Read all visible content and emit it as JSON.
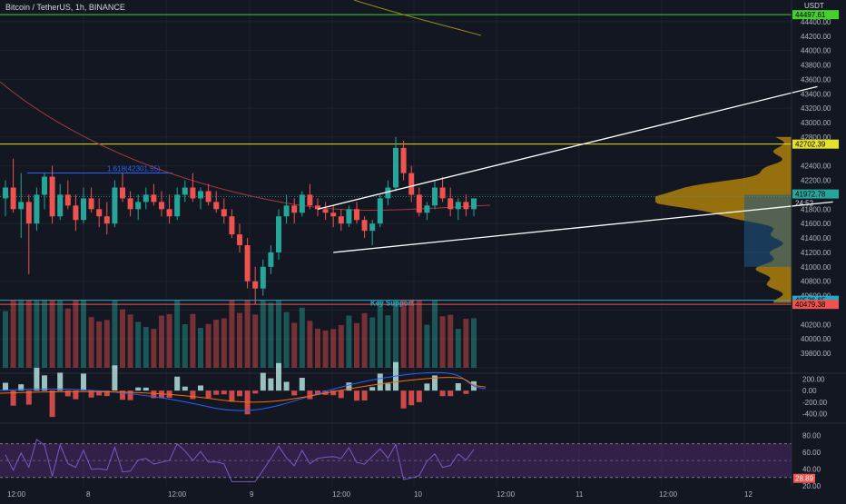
{
  "header": {
    "symbol": "Bitcoin / TetherUS, 1h, BINANCE",
    "currency": "USDT"
  },
  "colors": {
    "background": "#131722",
    "up": "#26a69a",
    "down": "#ef5350",
    "grid": "#1e222d",
    "text": "#b2b5be",
    "volume_profile": "#b8860b",
    "volume_profile_value_area": "#1f5a85",
    "rsi_band": "#4a2a6a"
  },
  "price_axis": {
    "ticks": [
      "44400.00",
      "44200.00",
      "44000.00",
      "43800.00",
      "43600.00",
      "43400.00",
      "43200.00",
      "43000.00",
      "42800.00",
      "42400.00",
      "42200.00",
      "42000.00",
      "41800.00",
      "41600.00",
      "41400.00",
      "41200.00",
      "41000.00",
      "40800.00",
      "40600.00",
      "40200.00",
      "40000.00",
      "39800.00"
    ]
  },
  "price_labels": [
    {
      "name": "upper-level",
      "text": "44497.61",
      "color": "#43d12b"
    },
    {
      "name": "resistance-level",
      "text": "42702.39",
      "color": "#e5e02b"
    },
    {
      "name": "current-price",
      "text": "41972.78",
      "color": "#26a69a"
    },
    {
      "name": "countdown",
      "text": "24:52",
      "color": "#26a69a"
    },
    {
      "name": "key-support",
      "text": "40536.65",
      "color": "#26a6c8"
    },
    {
      "name": "low-level",
      "text": "40479.38",
      "color": "#ef5350"
    }
  ],
  "annotations": {
    "fib": "1.618(42301.55)",
    "key_support": "Key Support"
  },
  "macd_axis": {
    "ticks": [
      "200.00",
      "0.00",
      "-200.00",
      "-400.00"
    ]
  },
  "rsi_axis": {
    "ticks": [
      "80.00",
      "60.00",
      "40.00",
      "20.00"
    ],
    "current": "28.89"
  },
  "time_axis": [
    "12:00",
    "8",
    "12:00",
    "9",
    "12:00",
    "10",
    "12:00",
    "11",
    "12:00",
    "12"
  ],
  "chart_data": {
    "type": "candlestick",
    "interval": "1h",
    "y_range": [
      39600,
      44600
    ],
    "ohlc": [
      [
        41950,
        42200,
        41700,
        42100
      ],
      [
        42100,
        42500,
        41750,
        41800
      ],
      [
        41800,
        42300,
        41400,
        41900
      ],
      [
        41900,
        42000,
        40900,
        41600
      ],
      [
        41600,
        42100,
        41500,
        42000
      ],
      [
        42000,
        42300,
        41800,
        42250
      ],
      [
        42250,
        42400,
        41600,
        41700
      ],
      [
        41700,
        42150,
        41650,
        42000
      ],
      [
        42000,
        42200,
        41800,
        41850
      ],
      [
        41850,
        42000,
        41500,
        41650
      ],
      [
        41650,
        42100,
        41600,
        41950
      ],
      [
        41950,
        42100,
        41750,
        41800
      ],
      [
        41800,
        41950,
        41550,
        41700
      ],
      [
        41700,
        41900,
        41450,
        41600
      ],
      [
        41600,
        42200,
        41550,
        42100
      ],
      [
        42100,
        42300,
        41900,
        41950
      ],
      [
        41950,
        42050,
        41700,
        41800
      ],
      [
        41800,
        42000,
        41650,
        41900
      ],
      [
        41900,
        42100,
        41800,
        42000
      ],
      [
        42000,
        42150,
        41850,
        41900
      ],
      [
        41900,
        42050,
        41700,
        41800
      ],
      [
        41800,
        42000,
        41600,
        41700
      ],
      [
        41700,
        42100,
        41650,
        42000
      ],
      [
        42000,
        42200,
        41900,
        42100
      ],
      [
        42100,
        42300,
        41900,
        41950
      ],
      [
        41950,
        42100,
        41800,
        42050
      ],
      [
        42050,
        42150,
        41850,
        41900
      ],
      [
        41900,
        42050,
        41750,
        41800
      ],
      [
        41800,
        41950,
        41600,
        41700
      ],
      [
        41700,
        41800,
        41400,
        41450
      ],
      [
        41450,
        41600,
        41200,
        41300
      ],
      [
        41300,
        41400,
        40700,
        40800
      ],
      [
        40800,
        41000,
        40480,
        40700
      ],
      [
        40700,
        41100,
        40600,
        41000
      ],
      [
        41000,
        41300,
        40900,
        41200
      ],
      [
        41200,
        41800,
        41100,
        41700
      ],
      [
        41700,
        42000,
        41600,
        41850
      ],
      [
        41850,
        41950,
        41600,
        41750
      ],
      [
        41750,
        42050,
        41700,
        42000
      ],
      [
        42000,
        42150,
        41800,
        41850
      ],
      [
        41850,
        41950,
        41700,
        41800
      ],
      [
        41800,
        41900,
        41650,
        41750
      ],
      [
        41750,
        41850,
        41550,
        41700
      ],
      [
        41700,
        41800,
        41500,
        41600
      ],
      [
        41600,
        41850,
        41550,
        41800
      ],
      [
        41800,
        41900,
        41600,
        41650
      ],
      [
        41650,
        41700,
        41400,
        41500
      ],
      [
        41500,
        41650,
        41300,
        41600
      ],
      [
        41600,
        42000,
        41550,
        41950
      ],
      [
        41950,
        42200,
        41850,
        42100
      ],
      [
        42100,
        42800,
        42050,
        42650
      ],
      [
        42650,
        42750,
        42200,
        42300
      ],
      [
        42300,
        42400,
        41900,
        42000
      ],
      [
        42000,
        42100,
        41700,
        41750
      ],
      [
        41750,
        41900,
        41650,
        41850
      ],
      [
        41850,
        42200,
        41800,
        42100
      ],
      [
        42100,
        42250,
        41900,
        41950
      ],
      [
        41950,
        42100,
        41700,
        41800
      ],
      [
        41800,
        41950,
        41650,
        41900
      ],
      [
        41900,
        42000,
        41700,
        41800
      ],
      [
        41800,
        41950,
        41700,
        41950
      ]
    ],
    "volume_ema_note": "",
    "trendlines": [
      {
        "name": "wedge-upper",
        "points": [
          [
            40,
            41800
          ],
          [
            104,
            43500
          ]
        ]
      },
      {
        "name": "wedge-lower",
        "points": [
          [
            42,
            41200
          ],
          [
            106,
            41900
          ]
        ]
      }
    ],
    "horizontal_levels": [
      44497.61,
      42702.39,
      40536.65,
      40479.38
    ],
    "rsi_range": [
      20,
      90
    ],
    "macd_range": [
      -500,
      300
    ]
  }
}
